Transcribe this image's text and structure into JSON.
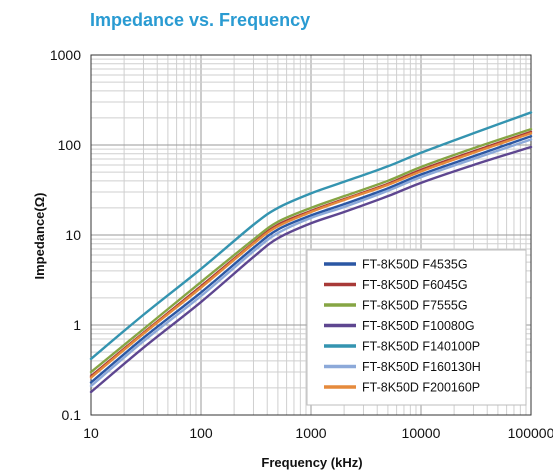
{
  "chart_data": {
    "type": "line",
    "title": "Impedance vs. Frequency",
    "xlabel": "Frequency (kHz)",
    "ylabel": "Impedance(Ω)",
    "x_scale": "log",
    "y_scale": "log",
    "xlim": [
      10,
      100000
    ],
    "ylim": [
      0.1,
      1000
    ],
    "x_ticks": [
      "10",
      "100",
      "1000",
      "10000",
      "100000"
    ],
    "y_ticks": [
      "0.1",
      "1",
      "10",
      "100",
      "1000"
    ],
    "grid": true,
    "legend_position": "bottom-right",
    "x": [
      10,
      30,
      100,
      300,
      500,
      1000,
      2000,
      5000,
      10000,
      30000,
      100000
    ],
    "series": [
      {
        "name": "FT-8K50D F4535G",
        "color": "#2b57a4",
        "values": [
          0.23,
          0.72,
          2.3,
          7.2,
          11.5,
          16.5,
          22,
          33,
          47,
          75,
          125
        ]
      },
      {
        "name": "FT-8K50D F6045G",
        "color": "#a83a38",
        "values": [
          0.27,
          0.82,
          2.7,
          8.2,
          13,
          18.5,
          25,
          37,
          53,
          85,
          140
        ]
      },
      {
        "name": "FT-8K50D F7555G",
        "color": "#86a544",
        "values": [
          0.3,
          0.9,
          3.0,
          8.9,
          14,
          20,
          27,
          40,
          57,
          92,
          150
        ]
      },
      {
        "name": "FT-8K50D F10080G",
        "color": "#5e4690",
        "values": [
          0.18,
          0.56,
          1.8,
          5.7,
          9.2,
          13.5,
          18,
          27,
          38,
          60,
          95
        ]
      },
      {
        "name": "FT-8K50D F140100P",
        "color": "#3494b0",
        "values": [
          0.42,
          1.3,
          4.2,
          13,
          20,
          29,
          39,
          58,
          82,
          135,
          230
        ]
      },
      {
        "name": "FT-8K50D F160130H",
        "color": "#8ca9d9",
        "values": [
          0.21,
          0.66,
          2.1,
          6.6,
          10.5,
          15.5,
          20.5,
          31,
          44,
          70,
          115
        ]
      },
      {
        "name": "FT-8K50D F200160P",
        "color": "#e58a3c",
        "values": [
          0.26,
          0.8,
          2.6,
          8.0,
          12.5,
          18,
          24.5,
          36,
          51,
          82,
          135
        ]
      }
    ],
    "colors": {
      "title": "#2a9bd2",
      "grid_major": "#9a9a9a",
      "grid_minor": "#cfcfcf",
      "axis": "#333333"
    }
  }
}
